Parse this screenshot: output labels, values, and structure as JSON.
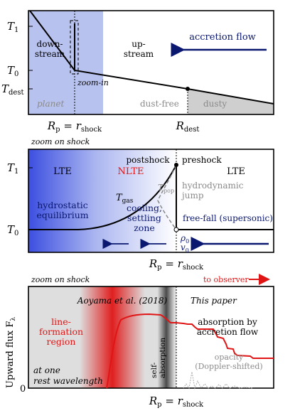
{
  "colors": {
    "planet_blue": "#b8c2ee",
    "deep_blue": "#3c4fe0",
    "navy": "#0b1870",
    "red": "#e01515",
    "dusty_gray": "#cfcfcf",
    "gray_text": "#8a8a8a"
  },
  "panel1": {
    "y_T1": "T",
    "y_T1_sub": "1",
    "y_T0": "T",
    "y_T0_sub": "0",
    "y_Tdest": "T",
    "y_Tdest_sub": "dest",
    "downstream_l1": "down-",
    "downstream_l2": "stream",
    "upstream_l1": "up-",
    "upstream_l2": "stream",
    "accretion_flow": "accretion flow",
    "zoom_in": "zoom-in",
    "planet": "planet",
    "dust_free": "dust-free",
    "dusty": "dusty",
    "x_rp_main": "R",
    "x_rp_sub": "p",
    "x_rp_eq": " = ",
    "x_rshock_main": "r",
    "x_rshock_sub": "shock",
    "x_rdest_main": "R",
    "x_rdest_sub": "dest"
  },
  "panel2": {
    "title": "zoom on shock",
    "y_T1": "T",
    "y_T1_sub": "1",
    "y_T0": "T",
    "y_T0_sub": "0",
    "lte_left": "LTE",
    "nlte": "NLTE",
    "postshock": "postshock",
    "preshock": "preshock",
    "lte_right": "LTE",
    "tgas_main": "T",
    "tgas_sub": "gas",
    "tpop_main": "T",
    "tpop_sub": "pop",
    "hydro_jump_l1": "hydrodynamic",
    "hydro_jump_l2": "jump",
    "hydrostatic_l1": "hydrostatic",
    "hydrostatic_l2": "equilibrium",
    "cooling_l1": "cooling,",
    "cooling_l2": "settling",
    "cooling_l3": "zone",
    "freefall": "free-fall (supersonic)",
    "rho0_main": "ρ",
    "rho0_sub": "0",
    "v0_main": "v",
    "v0_sub": "0",
    "x_rp_main": "R",
    "x_rp_sub": "p",
    "x_rp_eq": " = ",
    "x_rshock_main": "r",
    "x_rshock_sub": "shock"
  },
  "panel3": {
    "title": "zoom on shock",
    "to_observer": "to observer",
    "aoyama": "Aoyama et al. (2018)",
    "this_paper": "This paper",
    "line_l1": "line-",
    "line_l2": "formation",
    "line_l3": "region",
    "absorption_l1": "absorption by",
    "absorption_l2": "accretion flow",
    "self_abs_l1": "self-",
    "self_abs_l2": "absorption",
    "opacity_l1": "opacity",
    "opacity_l2": "(Doppler-shifted)",
    "rest_l1": "at one",
    "rest_l2": "rest wavelength",
    "y_label_main": "Upward flux F",
    "y_label_sub": "λ",
    "y_zero": "0",
    "x_rp_main": "R",
    "x_rp_sub": "p",
    "x_rp_eq": " = ",
    "x_rshock_main": "r",
    "x_rshock_sub": "shock"
  }
}
